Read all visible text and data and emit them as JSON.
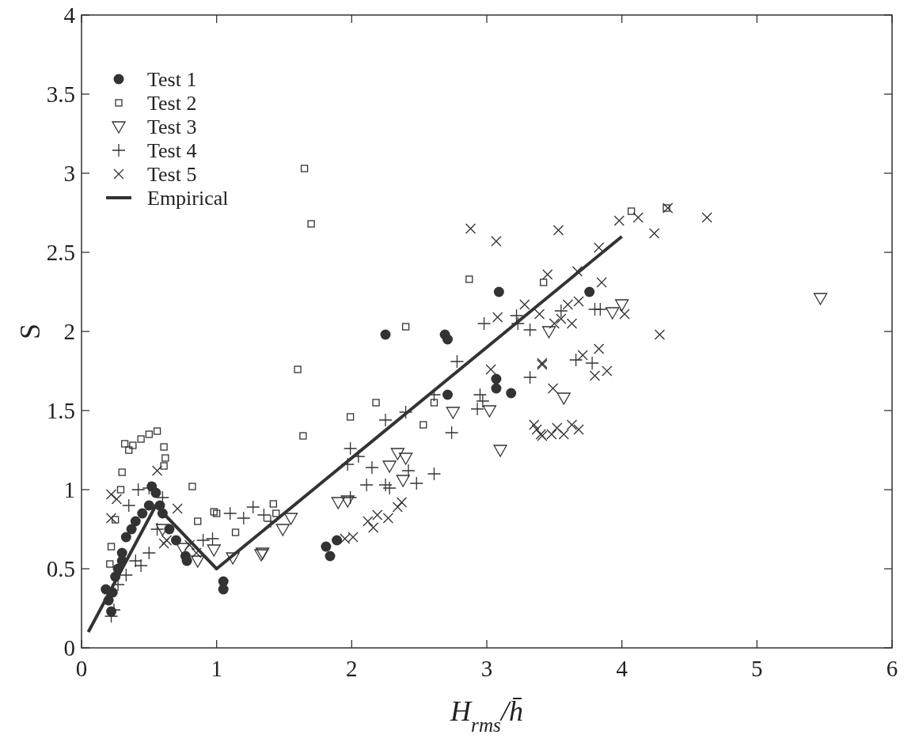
{
  "chart_data": {
    "type": "scatter",
    "xlabel": "H$_{rms}$/h̄",
    "ylabel": "S",
    "xlim": [
      0,
      6
    ],
    "ylim": [
      0,
      4
    ],
    "xticks": [
      0,
      1,
      2,
      3,
      4,
      5,
      6
    ],
    "yticks": [
      0,
      0.5,
      1,
      1.5,
      2,
      2.5,
      3,
      3.5,
      4
    ],
    "legend": "top left",
    "grid": false,
    "series": [
      {
        "name": "Test 1",
        "color": "#333333",
        "marker": "circle",
        "x": [
          0.18,
          0.2,
          0.22,
          0.23,
          0.25,
          0.27,
          0.3,
          0.3,
          0.33,
          0.37,
          0.4,
          0.45,
          0.5,
          0.52,
          0.55,
          0.58,
          0.6,
          0.65,
          0.7,
          0.77,
          0.78,
          1.05,
          1.05,
          1.81,
          1.84,
          1.89,
          2.25,
          2.69,
          2.71,
          2.71,
          3.07,
          3.07,
          3.09,
          3.18,
          3.76
        ],
        "values": [
          0.37,
          0.3,
          0.23,
          0.35,
          0.45,
          0.5,
          0.55,
          0.6,
          0.7,
          0.75,
          0.8,
          0.85,
          0.9,
          1.02,
          0.98,
          0.9,
          0.85,
          0.75,
          0.68,
          0.58,
          0.55,
          0.42,
          0.37,
          0.64,
          0.58,
          0.68,
          1.98,
          1.98,
          1.95,
          1.6,
          1.7,
          1.64,
          2.25,
          1.61,
          2.25
        ]
      },
      {
        "name": "Test 2",
        "color": "#333333",
        "marker": "square",
        "x": [
          0.21,
          0.22,
          0.25,
          0.29,
          0.3,
          0.32,
          0.35,
          0.38,
          0.44,
          0.5,
          0.56,
          0.61,
          0.61,
          0.62,
          0.82,
          0.86,
          0.98,
          1.0,
          1.14,
          1.42,
          1.44,
          1.6,
          1.64,
          1.65,
          1.7,
          1.99,
          2.18,
          2.4,
          2.53,
          2.61,
          2.87,
          3.42,
          4.07,
          4.33
        ],
        "values": [
          0.53,
          0.64,
          0.81,
          1.0,
          1.11,
          1.29,
          1.25,
          1.28,
          1.32,
          1.35,
          1.37,
          1.27,
          1.15,
          1.2,
          1.02,
          0.8,
          0.86,
          0.85,
          0.73,
          0.91,
          0.85,
          1.76,
          1.34,
          3.03,
          2.68,
          1.46,
          1.55,
          2.03,
          1.41,
          1.55,
          2.33,
          2.31,
          2.76,
          2.78
        ]
      },
      {
        "name": "Test 3",
        "color": "#333333",
        "marker": "triangle",
        "x": [
          0.6,
          0.75,
          0.86,
          0.98,
          1.12,
          1.33,
          1.34,
          1.49,
          1.55,
          1.9,
          1.97,
          2.28,
          2.34,
          2.38,
          2.4,
          2.75,
          3.02,
          3.1,
          3.46,
          3.57,
          3.93,
          4.0,
          5.47
        ],
        "values": [
          0.75,
          0.63,
          0.55,
          0.62,
          0.57,
          0.59,
          0.6,
          0.75,
          0.82,
          0.92,
          0.93,
          1.15,
          1.23,
          1.06,
          1.2,
          1.49,
          1.5,
          1.25,
          2.0,
          1.58,
          2.12,
          2.17,
          2.21
        ]
      },
      {
        "name": "Test 4",
        "color": "#333333",
        "marker": "cross",
        "x": [
          0.22,
          0.24,
          0.27,
          0.33,
          0.4,
          0.44,
          0.5,
          0.35,
          0.42,
          0.5,
          0.56,
          0.6,
          0.9,
          0.97,
          1.1,
          1.2,
          1.27,
          1.35,
          1.4,
          1.99,
          1.97,
          2.05,
          2.15,
          2.11,
          2.25,
          2.28,
          2.42,
          2.48,
          2.61,
          1.99,
          2.25,
          2.4,
          2.61,
          2.74,
          2.78,
          2.95,
          2.97,
          2.93,
          2.98,
          3.22,
          3.23,
          3.32,
          3.32,
          3.55,
          3.8,
          3.84,
          3.66,
          3.78
        ],
        "values": [
          0.2,
          0.24,
          0.4,
          0.46,
          0.55,
          0.52,
          0.6,
          0.9,
          1.0,
          1.01,
          0.75,
          0.95,
          0.68,
          0.69,
          0.85,
          0.82,
          0.89,
          0.84,
          0.8,
          1.26,
          1.16,
          1.21,
          1.14,
          1.03,
          1.03,
          1.01,
          1.12,
          1.04,
          1.1,
          0.95,
          1.44,
          1.49,
          1.6,
          1.36,
          1.81,
          1.6,
          1.56,
          1.51,
          2.05,
          2.1,
          2.05,
          2.01,
          1.71,
          2.13,
          2.14,
          2.14,
          1.82,
          1.8
        ]
      },
      {
        "name": "Test 5",
        "color": "#333333",
        "marker": "x",
        "x": [
          0.22,
          0.22,
          0.26,
          0.56,
          0.61,
          0.63,
          0.71,
          0.8,
          0.85,
          1.95,
          2.01,
          2.12,
          2.16,
          2.19,
          2.27,
          2.34,
          2.37,
          2.88,
          3.03,
          3.07,
          3.08,
          3.28,
          3.35,
          3.37,
          3.4,
          3.41,
          3.45,
          3.53,
          3.98,
          4.12,
          4.24,
          4.34,
          4.63,
          3.83,
          3.67,
          3.85,
          3.68,
          3.6,
          4.02,
          3.55,
          3.5,
          3.63,
          3.39,
          4.28,
          3.41,
          3.83,
          3.71,
          3.89,
          3.8,
          3.49,
          3.52,
          3.63,
          3.68,
          3.57,
          3.41,
          3.48
        ],
        "values": [
          0.97,
          0.82,
          0.94,
          1.12,
          0.66,
          0.68,
          0.88,
          0.65,
          0.6,
          0.69,
          0.7,
          0.8,
          0.76,
          0.84,
          0.82,
          0.89,
          0.92,
          2.65,
          1.76,
          2.57,
          2.09,
          2.17,
          1.41,
          1.38,
          1.35,
          1.79,
          2.36,
          2.64,
          2.7,
          2.72,
          2.62,
          2.78,
          2.72,
          2.53,
          2.38,
          2.31,
          2.19,
          2.17,
          2.11,
          2.08,
          2.05,
          2.05,
          2.11,
          1.98,
          1.8,
          1.89,
          1.85,
          1.75,
          1.72,
          1.64,
          1.39,
          1.41,
          1.38,
          1.35,
          1.34,
          1.35
        ]
      },
      {
        "name": "Empirical",
        "type": "line",
        "color": "#333333",
        "x": [
          0.05,
          0.55,
          1.0,
          4.0
        ],
        "values": [
          0.1,
          0.9,
          0.5,
          2.6
        ]
      }
    ]
  }
}
